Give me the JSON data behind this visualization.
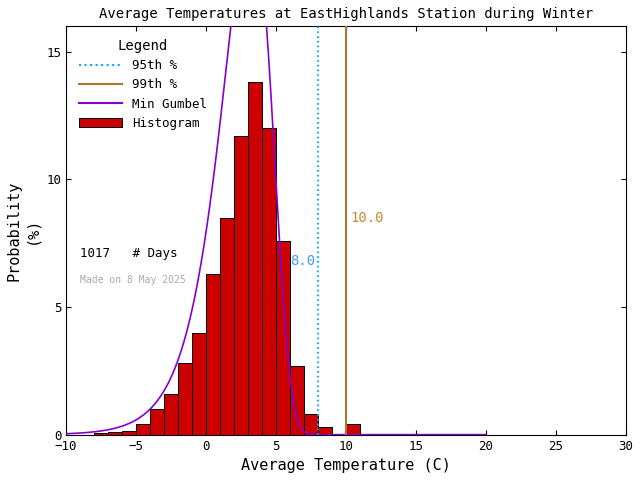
{
  "title": "Average Temperatures at EastHighlands Station during Winter",
  "xlabel": "Average Temperature (C)",
  "ylabel": "Probability\n(%)",
  "xlim": [
    -10,
    30
  ],
  "ylim": [
    0,
    16
  ],
  "xticks": [
    -10,
    -5,
    0,
    5,
    10,
    15,
    20,
    25,
    30
  ],
  "yticks": [
    0,
    5,
    10,
    15
  ],
  "bin_edges": [
    -10,
    -9,
    -8,
    -7,
    -6,
    -5,
    -4,
    -3,
    -2,
    -1,
    0,
    1,
    2,
    3,
    4,
    5,
    6,
    7,
    8,
    9,
    10,
    11,
    12,
    13
  ],
  "bar_heights": [
    0.0,
    0.0,
    0.05,
    0.1,
    0.15,
    0.4,
    1.0,
    1.6,
    2.8,
    4.0,
    6.3,
    8.5,
    11.7,
    13.8,
    12.0,
    7.6,
    2.7,
    0.8,
    0.3,
    0.0,
    0.4,
    0.0,
    0.0,
    0.0
  ],
  "bar_color": "#cc0000",
  "bar_edgecolor": "#000000",
  "percentile_95": 8.0,
  "percentile_99": 10.0,
  "percentile_95_color": "#00aaff",
  "percentile_99_color": "#aa7733",
  "percentile_95_label_color": "#4499ff",
  "percentile_99_label_color": "#cc8833",
  "gumbel_color": "#8800cc",
  "n_days": 1017,
  "made_on": "Made on 8 May 2025",
  "background_color": "#ffffff",
  "gumbel_mu": 3.2,
  "gumbel_beta": 1.8
}
